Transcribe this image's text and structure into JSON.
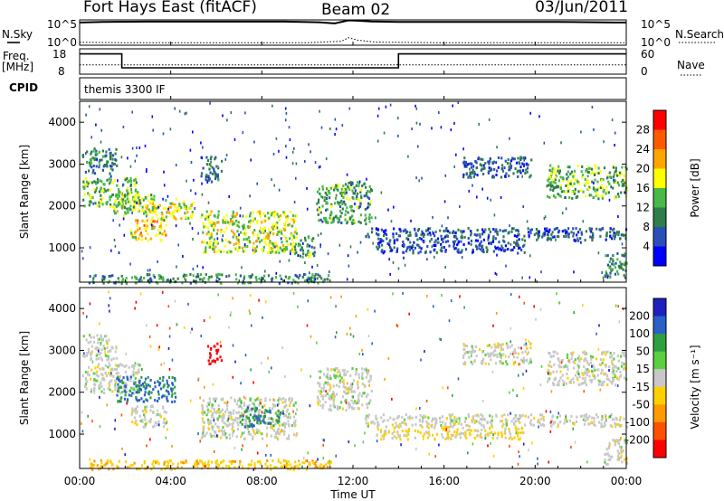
{
  "header": {
    "title": "Fort Hays East (fitACF)",
    "beam": "Beam 02",
    "date": "03/Jun/2011"
  },
  "noise_panel": {
    "left_label": "N.Sky",
    "right_label": "N.Search",
    "left_ticks": [
      "10^5",
      "10^0"
    ],
    "right_ticks": [
      "10^5",
      "10^0"
    ]
  },
  "freq_panel": {
    "left_label_line1": "Freq.",
    "left_label_line2": "[MHz]",
    "right_label": "Nave",
    "left_ticks": [
      "18",
      "8"
    ],
    "right_ticks": [
      "60",
      "0"
    ]
  },
  "cpid_panel": {
    "label": "CPID",
    "program": "themis 3300 IF"
  },
  "time_axis": {
    "label": "Time UT",
    "ticks": [
      "00:00",
      "04:00",
      "08:00",
      "12:00",
      "16:00",
      "20:00",
      "00:00"
    ]
  },
  "range_ticks": [
    "1000",
    "2000",
    "3000",
    "4000"
  ],
  "power_panel": {
    "ylabel": "Slant Range [km]",
    "colorbar_label": "Power [dB]"
  },
  "velocity_panel": {
    "ylabel": "Slant Range [km]",
    "colorbar_label": "Velocity [m s⁻¹]"
  },
  "colors": {
    "power_scale": [
      "#0000ff",
      "#2a4fb8",
      "#2e7d4a",
      "#48b848",
      "#ffff00",
      "#ffa500",
      "#ff5a00",
      "#ff0000"
    ],
    "velocity_scale": [
      "#2020c0",
      "#2a60c8",
      "#2fa040",
      "#5ad040",
      "#c8c8c8",
      "#ffd000",
      "#ff9a00",
      "#ff5000",
      "#ff0000"
    ]
  },
  "chart_data": [
    {
      "type": "line",
      "title": "N.Sky / N.Search noise",
      "x_unit": "hours UT",
      "xlim": [
        0,
        24
      ],
      "y_scale": "log",
      "series": [
        {
          "name": "N.Sky",
          "style": "solid",
          "x": [
            0,
            1,
            3,
            6,
            9,
            10.5,
            11.2,
            11.8,
            12.2,
            12.8,
            14,
            15,
            18,
            21,
            23.5,
            24
          ],
          "y": [
            30000,
            40000,
            45000,
            45000,
            45000,
            35000,
            20000,
            80000,
            70000,
            50000,
            40000,
            40000,
            40000,
            40000,
            30000,
            30000
          ]
        },
        {
          "name": "N.Search",
          "style": "dotted",
          "x": [
            0,
            2,
            6,
            10,
            11.5,
            11.8,
            12.2,
            13,
            16,
            20,
            24
          ],
          "y": [
            4,
            3,
            3,
            3,
            6,
            30,
            10,
            4,
            3,
            3,
            3
          ]
        }
      ]
    },
    {
      "type": "line",
      "title": "Freq. / Nave",
      "x_unit": "hours UT",
      "xlim": [
        0,
        24
      ],
      "series": [
        {
          "name": "Freq. [MHz]",
          "style": "solid",
          "ylim": [
            8,
            18
          ],
          "x": [
            0,
            1.85,
            1.85,
            14,
            14,
            24
          ],
          "y": [
            16,
            16,
            10.5,
            10.5,
            16,
            16
          ]
        },
        {
          "name": "Nave",
          "style": "dotted",
          "ylim": [
            0,
            60
          ],
          "x": [
            0,
            24
          ],
          "y": [
            22,
            22
          ]
        }
      ]
    },
    {
      "type": "heatmap",
      "title": "Power [dB]",
      "x_unit": "hours UT",
      "y_unit": "Slant Range [km]",
      "xlim": [
        0,
        24
      ],
      "ylim": [
        180,
        4500
      ],
      "colorbar_ticks": [
        4,
        8,
        12,
        16,
        20,
        24,
        28
      ],
      "colorbar_range": [
        0,
        32
      ],
      "regions": [
        {
          "t0": 0.1,
          "t1": 1.6,
          "r0": 2800,
          "r1": 3400,
          "p": 9
        },
        {
          "t0": 0.1,
          "t1": 2.6,
          "r0": 2000,
          "r1": 2700,
          "p": 14
        },
        {
          "t0": 1.4,
          "t1": 3.4,
          "r0": 1800,
          "r1": 2300,
          "p": 16
        },
        {
          "t0": 3.0,
          "t1": 5.0,
          "r0": 1700,
          "r1": 2200,
          "p": 18
        },
        {
          "t0": 2.2,
          "t1": 3.8,
          "r0": 1200,
          "r1": 1700,
          "p": 20
        },
        {
          "t0": 5.3,
          "t1": 6.2,
          "r0": 2600,
          "r1": 3200,
          "p": 8
        },
        {
          "t0": 5.3,
          "t1": 9.5,
          "r0": 900,
          "r1": 1900,
          "p": 17
        },
        {
          "t0": 9.3,
          "t1": 10.3,
          "r0": 800,
          "r1": 1300,
          "p": 12
        },
        {
          "t0": 10.4,
          "t1": 12.8,
          "r0": 1600,
          "r1": 2600,
          "p": 12
        },
        {
          "t0": 12.5,
          "t1": 24,
          "r0": 1200,
          "r1": 1500,
          "p": 7
        },
        {
          "t0": 13.0,
          "t1": 19.5,
          "r0": 900,
          "r1": 1200,
          "p": 6
        },
        {
          "t0": 16.8,
          "t1": 19.8,
          "r0": 2700,
          "r1": 3200,
          "p": 7
        },
        {
          "t0": 20.5,
          "t1": 24,
          "r0": 2200,
          "r1": 3000,
          "p": 14
        },
        {
          "t0": 0.3,
          "t1": 11.0,
          "r0": 180,
          "r1": 400,
          "p": 11
        },
        {
          "t0": 23.0,
          "t1": 24,
          "r0": 300,
          "r1": 900,
          "p": 10
        }
      ]
    },
    {
      "type": "heatmap",
      "title": "Velocity [m s⁻¹]",
      "x_unit": "hours UT",
      "y_unit": "Slant Range [km]",
      "xlim": [
        0,
        24
      ],
      "ylim": [
        180,
        4500
      ],
      "colorbar_ticks": [
        200,
        100,
        50,
        15,
        -15,
        -50,
        -100,
        -200
      ],
      "regions": [
        {
          "t0": 0.1,
          "t1": 1.6,
          "r0": 2800,
          "r1": 3400,
          "v": 0
        },
        {
          "t0": 0.1,
          "t1": 2.6,
          "r0": 2000,
          "r1": 2700,
          "v": 0
        },
        {
          "t0": 1.6,
          "t1": 4.2,
          "r0": 1800,
          "r1": 2400,
          "v": 80
        },
        {
          "t0": 2.2,
          "t1": 3.8,
          "r0": 1200,
          "r1": 1700,
          "v": 0
        },
        {
          "t0": 5.3,
          "t1": 9.5,
          "r0": 900,
          "r1": 1900,
          "v": 0
        },
        {
          "t0": 7.0,
          "t1": 8.8,
          "r0": 1200,
          "r1": 1700,
          "v": 70
        },
        {
          "t0": 5.6,
          "t1": 6.2,
          "r0": 2700,
          "r1": 3200,
          "v": -250
        },
        {
          "t0": 10.4,
          "t1": 12.8,
          "r0": 1600,
          "r1": 2600,
          "v": 0
        },
        {
          "t0": 12.5,
          "t1": 24,
          "r0": 1200,
          "r1": 1500,
          "v": 0
        },
        {
          "t0": 13.0,
          "t1": 19.5,
          "r0": 900,
          "r1": 1200,
          "v": -20
        },
        {
          "t0": 16.8,
          "t1": 19.8,
          "r0": 2700,
          "r1": 3200,
          "v": 0
        },
        {
          "t0": 20.5,
          "t1": 24,
          "r0": 2200,
          "r1": 3000,
          "v": 0
        },
        {
          "t0": 0.3,
          "t1": 11.0,
          "r0": 180,
          "r1": 400,
          "v": -40
        },
        {
          "t0": 23.0,
          "t1": 24,
          "r0": 300,
          "r1": 900,
          "v": 0
        }
      ]
    }
  ]
}
